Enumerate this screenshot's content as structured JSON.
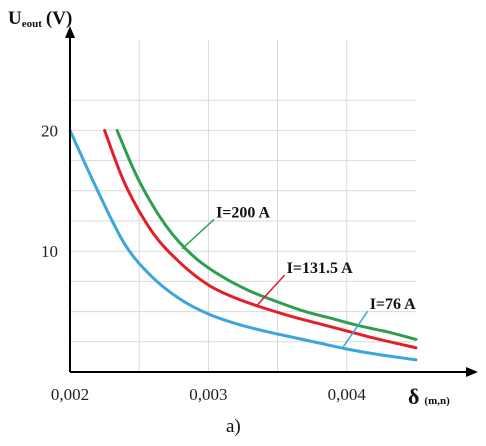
{
  "chart_data": {
    "type": "line",
    "ylabel_main": "U",
    "ylabel_sub": "eout",
    "ylabel_unit": "(V)",
    "xlabel_main": "δ",
    "xlabel_unit": "(m,n)",
    "caption": "a)",
    "xlim": [
      0.002,
      0.0045
    ],
    "ylim": [
      0,
      25
    ],
    "x_ticks": [
      {
        "value": 0.002,
        "label": "0,002"
      },
      {
        "value": 0.003,
        "label": "0,003"
      },
      {
        "value": 0.004,
        "label": "0,004"
      }
    ],
    "y_ticks": [
      {
        "value": 10,
        "label": "10"
      },
      {
        "value": 20,
        "label": "20"
      }
    ],
    "x_grid": [
      0.0025,
      0.003,
      0.0035,
      0.004
    ],
    "y_grid": [
      2.5,
      5,
      7.5,
      10,
      12.5,
      15,
      17.5,
      20,
      22.5
    ],
    "grid": true,
    "series": [
      {
        "name": "I=200 A",
        "color": "#2e9e4f",
        "x": [
          0.00234,
          0.0025,
          0.0027,
          0.0029,
          0.0031,
          0.0033,
          0.0035,
          0.0037,
          0.0039,
          0.0041,
          0.0043,
          0.0045
        ],
        "y": [
          20,
          15.8,
          12.0,
          9.5,
          7.9,
          6.7,
          5.8,
          5.0,
          4.4,
          3.8,
          3.3,
          2.7
        ]
      },
      {
        "name": "I=131.5 A",
        "color": "#e0202a",
        "x": [
          0.00225,
          0.0024,
          0.0026,
          0.0028,
          0.003,
          0.0032,
          0.0034,
          0.0036,
          0.0038,
          0.004,
          0.0042,
          0.0045
        ],
        "y": [
          20,
          15.5,
          11.5,
          9.0,
          7.2,
          6.1,
          5.3,
          4.6,
          4.0,
          3.4,
          2.8,
          2.0
        ]
      },
      {
        "name": "I=76 A",
        "color": "#3aa6dc",
        "x": [
          0.002,
          0.0022,
          0.0024,
          0.0026,
          0.0028,
          0.003,
          0.0032,
          0.0034,
          0.0036,
          0.0038,
          0.004,
          0.0042,
          0.0045
        ],
        "y": [
          20,
          15.0,
          10.5,
          7.8,
          6.0,
          4.8,
          4.0,
          3.4,
          2.9,
          2.4,
          1.9,
          1.5,
          1.0
        ]
      }
    ],
    "annotations": [
      {
        "text": "I=200 A",
        "series": 0,
        "x": 0.00281,
        "y": 10.2,
        "lx": 0.00307,
        "ly": 12.8
      },
      {
        "text": "I=131.5 A",
        "series": 1,
        "x": 0.00335,
        "y": 5.5,
        "lx": 0.00358,
        "ly": 8.2
      },
      {
        "text": "I=76 A",
        "series": 2,
        "x": 0.00397,
        "y": 2.0,
        "lx": 0.00418,
        "ly": 5.2
      }
    ]
  }
}
